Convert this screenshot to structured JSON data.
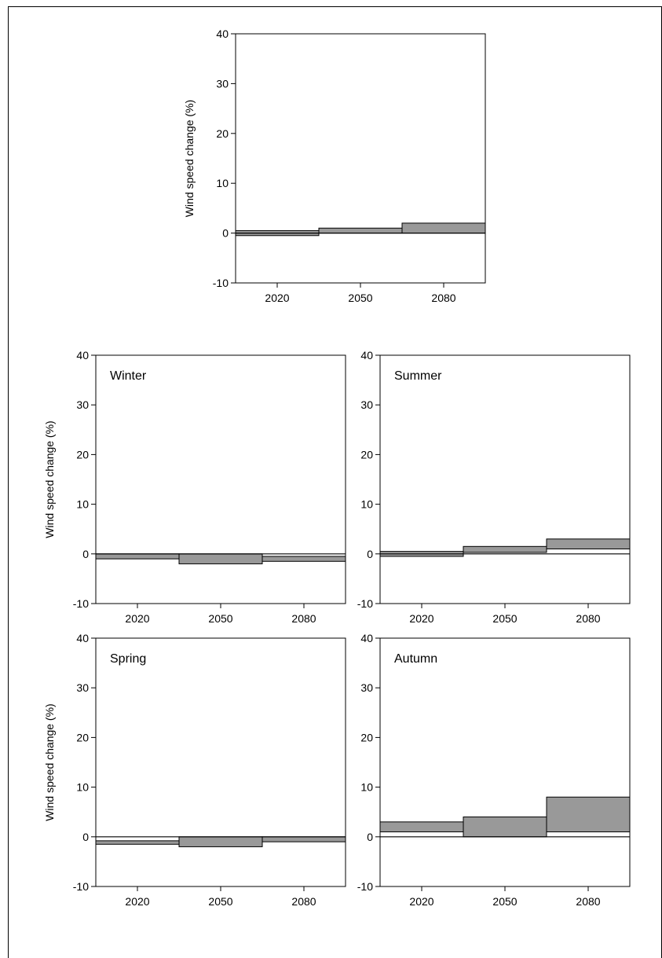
{
  "chart_data": [
    {
      "type": "bar",
      "panel_label": "",
      "categories": [
        "2020",
        "2050",
        "2080"
      ],
      "ylabel": "Wind speed change (%)",
      "xlabel": "",
      "ylim": [
        -10,
        40
      ],
      "yticks": [
        "-10",
        "0",
        "10",
        "20",
        "30",
        "40"
      ],
      "ranges": [
        {
          "category": "2020",
          "low": -0.5,
          "high": 0.5
        },
        {
          "category": "2050",
          "low": 0,
          "high": 1
        },
        {
          "category": "2080",
          "low": 0,
          "high": 2
        }
      ],
      "grid": false
    },
    {
      "type": "bar",
      "panel_label": "Winter",
      "categories": [
        "2020",
        "2050",
        "2080"
      ],
      "ylabel": "Wind speed change (%)",
      "xlabel": "",
      "ylim": [
        -10,
        40
      ],
      "yticks": [
        "-10",
        "0",
        "10",
        "20",
        "30",
        "40"
      ],
      "ranges": [
        {
          "category": "2020",
          "low": -1,
          "high": 0
        },
        {
          "category": "2050",
          "low": -2,
          "high": 0
        },
        {
          "category": "2080",
          "low": -1.5,
          "high": -0.5
        }
      ],
      "grid": false
    },
    {
      "type": "bar",
      "panel_label": "Summer",
      "categories": [
        "2020",
        "2050",
        "2080"
      ],
      "ylabel": "",
      "xlabel": "",
      "ylim": [
        -10,
        40
      ],
      "yticks": [
        "-10",
        "0",
        "10",
        "20",
        "30",
        "40"
      ],
      "ranges": [
        {
          "category": "2020",
          "low": -0.5,
          "high": 0.5
        },
        {
          "category": "2050",
          "low": 0.3,
          "high": 1.5
        },
        {
          "category": "2080",
          "low": 1,
          "high": 3
        }
      ],
      "grid": false
    },
    {
      "type": "bar",
      "panel_label": "Spring",
      "categories": [
        "2020",
        "2050",
        "2080"
      ],
      "ylabel": "Wind speed change (%)",
      "xlabel": "",
      "ylim": [
        -10,
        40
      ],
      "yticks": [
        "-10",
        "0",
        "10",
        "20",
        "30",
        "40"
      ],
      "ranges": [
        {
          "category": "2020",
          "low": -1.5,
          "high": -0.8
        },
        {
          "category": "2050",
          "low": -2,
          "high": 0
        },
        {
          "category": "2080",
          "low": -1,
          "high": 0
        }
      ],
      "grid": false
    },
    {
      "type": "bar",
      "panel_label": "Autumn",
      "categories": [
        "2020",
        "2050",
        "2080"
      ],
      "ylabel": "",
      "xlabel": "",
      "ylim": [
        -10,
        40
      ],
      "yticks": [
        "-10",
        "0",
        "10",
        "20",
        "30",
        "40"
      ],
      "ranges": [
        {
          "category": "2020",
          "low": 1,
          "high": 3
        },
        {
          "category": "2050",
          "low": 0,
          "high": 4
        },
        {
          "category": "2080",
          "low": 1,
          "high": 8
        }
      ],
      "grid": false
    }
  ],
  "colors": {
    "bar_fill": "#999999",
    "axis": "#000000",
    "background": "#ffffff"
  }
}
